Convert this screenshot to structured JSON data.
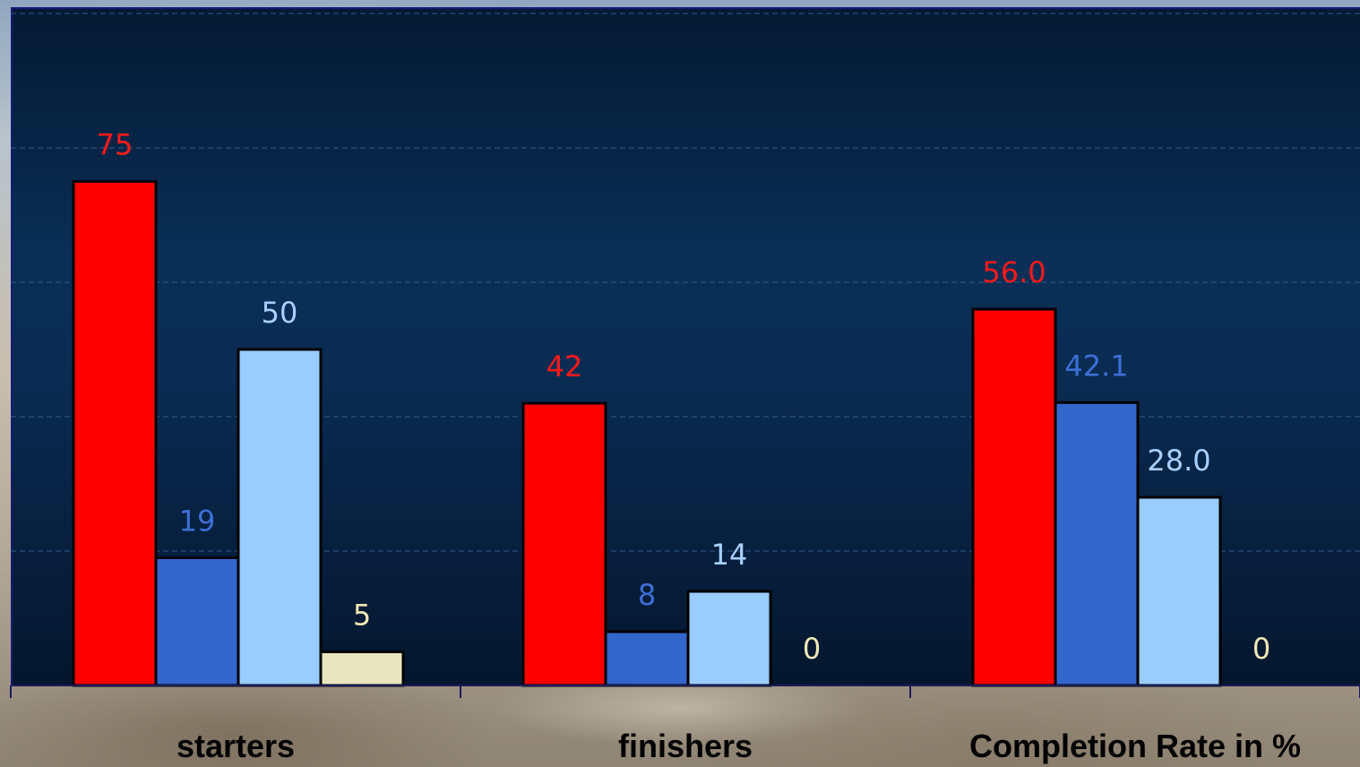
{
  "chart_data": {
    "type": "bar",
    "title": "",
    "xlabel": "",
    "ylabel": "",
    "ylim": [
      0,
      100
    ],
    "grid": true,
    "categories": [
      "starters",
      "finishers",
      "Completion Rate in %"
    ],
    "series": [
      {
        "color": "#ff0000",
        "values": [
          75,
          42,
          56.0
        ],
        "labels": [
          "75",
          "42",
          "56.0"
        ]
      },
      {
        "color": "#3366cc",
        "values": [
          19,
          8,
          42.1
        ],
        "labels": [
          "19",
          "8",
          "42.1"
        ]
      },
      {
        "color": "#99ccff",
        "values": [
          50,
          14,
          28.0
        ],
        "labels": [
          "50",
          "14",
          "28.0"
        ]
      },
      {
        "color": "#e8e6c0",
        "values": [
          5,
          0,
          0
        ],
        "labels": [
          "5",
          "0",
          "0"
        ]
      }
    ],
    "label_colors": [
      "#ff1a1a",
      "#3d6fd6",
      "#a8d0ff",
      "#efe9b8"
    ]
  }
}
